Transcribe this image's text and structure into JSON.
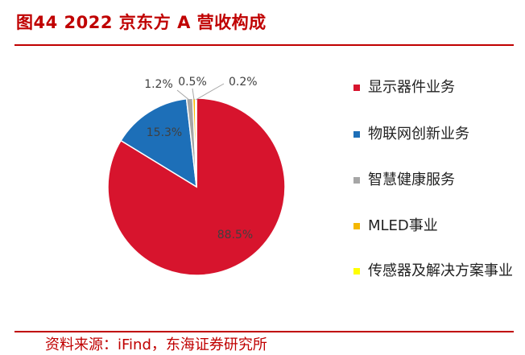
{
  "title": "图44  2022 京东方 A 营收构成",
  "source": "资料来源：iFind，东海证券研究所",
  "colors": {
    "accent": "#c00000"
  },
  "chart_data": {
    "type": "pie",
    "title": "2022 京东方 A 营收构成",
    "categories": [
      "显示器件业务",
      "物联网创新业务",
      "智慧健康服务",
      "MLED事业",
      "传感器及解决方案事业"
    ],
    "values": [
      88.5,
      15.3,
      1.2,
      0.5,
      0.2
    ],
    "labels": [
      "88.5%",
      "15.3%",
      "1.2%",
      "0.5%",
      "0.2%"
    ],
    "colors": [
      "#d7142d",
      "#1d6fb8",
      "#a6a6a6",
      "#f5b800",
      "#ffff00"
    ],
    "legend": "right"
  }
}
